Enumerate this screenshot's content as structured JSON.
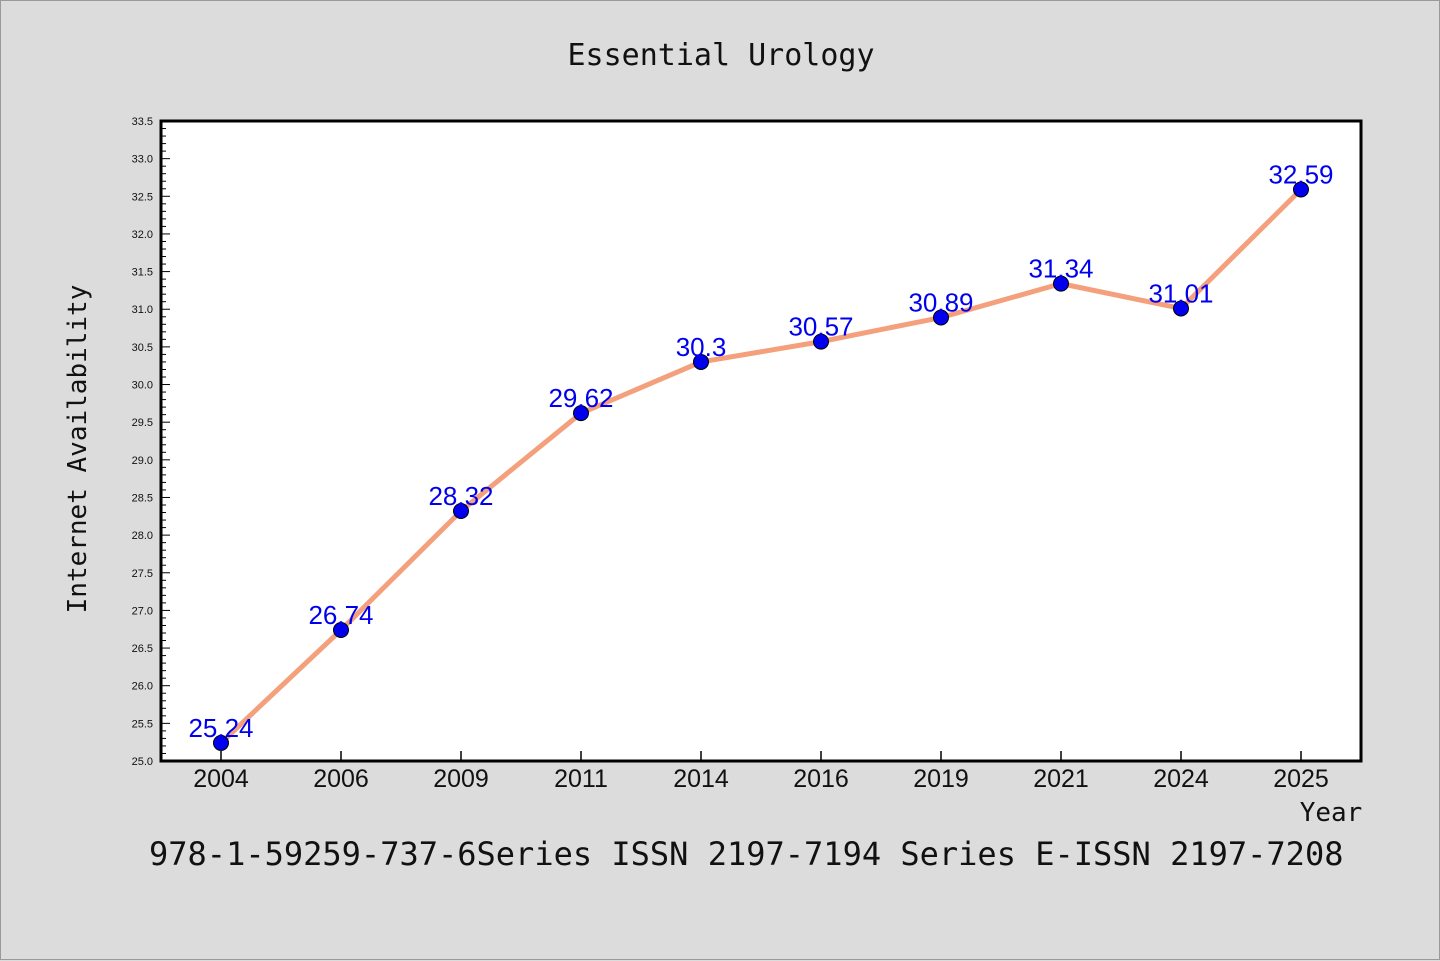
{
  "colors": {
    "background": "#dcdcdc",
    "plot_background": "#ffffff",
    "line": "#f4a07c",
    "marker": "#0000ee",
    "data_label": "#0000ee"
  },
  "footer_text": "978-1-59259-737-6Series ISSN 2197-7194 Series E-ISSN 2197-7208",
  "chart_data": {
    "type": "line",
    "title": "Essential Urology",
    "xlabel": "Year",
    "ylabel": "Internet Availability",
    "categories": [
      "2004",
      "2006",
      "2009",
      "2011",
      "2014",
      "2016",
      "2019",
      "2021",
      "2024",
      "2025"
    ],
    "series": [
      {
        "values": [
          25.24,
          26.74,
          28.32,
          29.62,
          30.3,
          30.57,
          30.89,
          31.34,
          31.01,
          32.59
        ],
        "labels": [
          "25.24",
          "26.74",
          "28.32",
          "29.62",
          "30.3",
          "30.57",
          "30.89",
          "31.34",
          "31.01",
          "32.59"
        ]
      }
    ],
    "ylim": [
      25.0,
      33.5
    ],
    "yticks": [
      "25.0",
      "25.5",
      "26.0",
      "26.5",
      "27.0",
      "27.5",
      "28.0",
      "28.5",
      "29.0",
      "29.5",
      "30.0",
      "30.5",
      "31.0",
      "31.5",
      "32.0",
      "32.5",
      "33.0",
      "33.5"
    ],
    "grid": false,
    "legend": "none"
  }
}
